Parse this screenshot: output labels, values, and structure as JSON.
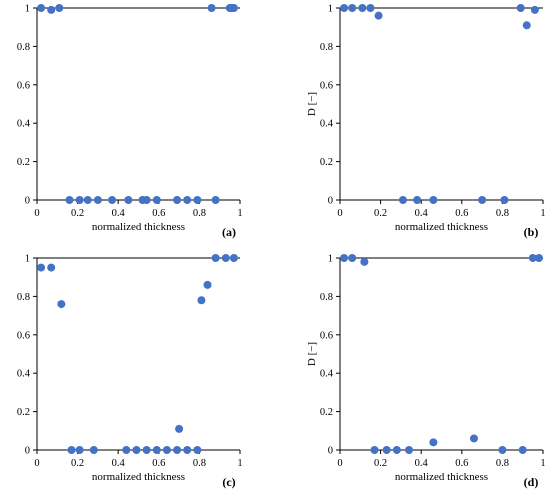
{
  "chart_data": [
    {
      "type": "scatter",
      "panel_label": "(a)",
      "xlabel": "normalized thickness",
      "ylabel": "",
      "xlim": [
        0,
        1
      ],
      "ylim": [
        0,
        1
      ],
      "xticks": [
        "0",
        "0.2",
        "0.4",
        "0.6",
        "0.8",
        "1"
      ],
      "yticks": [
        "0",
        "0.2",
        "0.4",
        "0.6",
        "0.8",
        "1"
      ],
      "grid": false,
      "series": [
        {
          "color": "#4472c4",
          "x": [
            0.02,
            0.07,
            0.11,
            0.16,
            0.21,
            0.25,
            0.3,
            0.37,
            0.45,
            0.52,
            0.54,
            0.59,
            0.69,
            0.74,
            0.79,
            0.86,
            0.88,
            0.95,
            0.96,
            0.97
          ],
          "y": [
            1,
            0.99,
            1,
            0,
            0,
            0,
            0,
            0,
            0,
            0,
            0,
            0,
            0,
            0,
            0,
            1,
            0,
            1,
            1,
            1
          ]
        }
      ]
    },
    {
      "type": "scatter",
      "panel_label": "(b)",
      "xlabel": "normalized thickness",
      "ylabel": "D [−]",
      "xlim": [
        0,
        1
      ],
      "ylim": [
        0,
        1
      ],
      "xticks": [
        "0",
        "0.2",
        "0.4",
        "0.6",
        "0.8",
        "1"
      ],
      "yticks": [
        "0",
        "0.2",
        "0.4",
        "0.6",
        "0.8",
        "1"
      ],
      "grid": false,
      "series": [
        {
          "color": "#4472c4",
          "x": [
            0.02,
            0.06,
            0.11,
            0.15,
            0.19,
            0.31,
            0.38,
            0.46,
            0.7,
            0.81,
            0.89,
            0.92,
            0.96
          ],
          "y": [
            1,
            1,
            1,
            1,
            0.96,
            0,
            0,
            0,
            0,
            0,
            1,
            0.91,
            0.99
          ]
        }
      ]
    },
    {
      "type": "scatter",
      "panel_label": "(c)",
      "xlabel": "normalized thickness",
      "ylabel": "",
      "xlim": [
        0,
        1
      ],
      "ylim": [
        0,
        1
      ],
      "xticks": [
        "0",
        "0.2",
        "0.4",
        "0.6",
        "0.8",
        "1"
      ],
      "yticks": [
        "0",
        "0.2",
        "0.4",
        "0.6",
        "0.8",
        "1"
      ],
      "grid": false,
      "series": [
        {
          "color": "#4472c4",
          "x": [
            0.02,
            0.07,
            0.12,
            0.17,
            0.21,
            0.28,
            0.44,
            0.49,
            0.54,
            0.59,
            0.64,
            0.69,
            0.7,
            0.74,
            0.79,
            0.81,
            0.84,
            0.88,
            0.93,
            0.97
          ],
          "y": [
            0.95,
            0.95,
            0.76,
            0,
            0,
            0,
            0,
            0,
            0,
            0,
            0,
            0,
            0.11,
            0,
            0,
            0.78,
            0.86,
            1,
            1,
            1
          ]
        }
      ]
    },
    {
      "type": "scatter",
      "panel_label": "(d)",
      "xlabel": "normalized thickness",
      "ylabel": "D [−]",
      "xlim": [
        0,
        1
      ],
      "ylim": [
        0,
        1
      ],
      "xticks": [
        "0",
        "0.2",
        "0.4",
        "0.6",
        "0.8",
        "1"
      ],
      "yticks": [
        "0",
        "0.2",
        "0.4",
        "0.6",
        "0.8",
        "1"
      ],
      "grid": false,
      "series": [
        {
          "color": "#4472c4",
          "x": [
            0.02,
            0.06,
            0.12,
            0.17,
            0.23,
            0.28,
            0.34,
            0.46,
            0.66,
            0.8,
            0.9,
            0.95,
            0.98
          ],
          "y": [
            1,
            1,
            0.98,
            0,
            0,
            0,
            0,
            0.04,
            0.06,
            0,
            0,
            1,
            1
          ]
        }
      ]
    }
  ]
}
